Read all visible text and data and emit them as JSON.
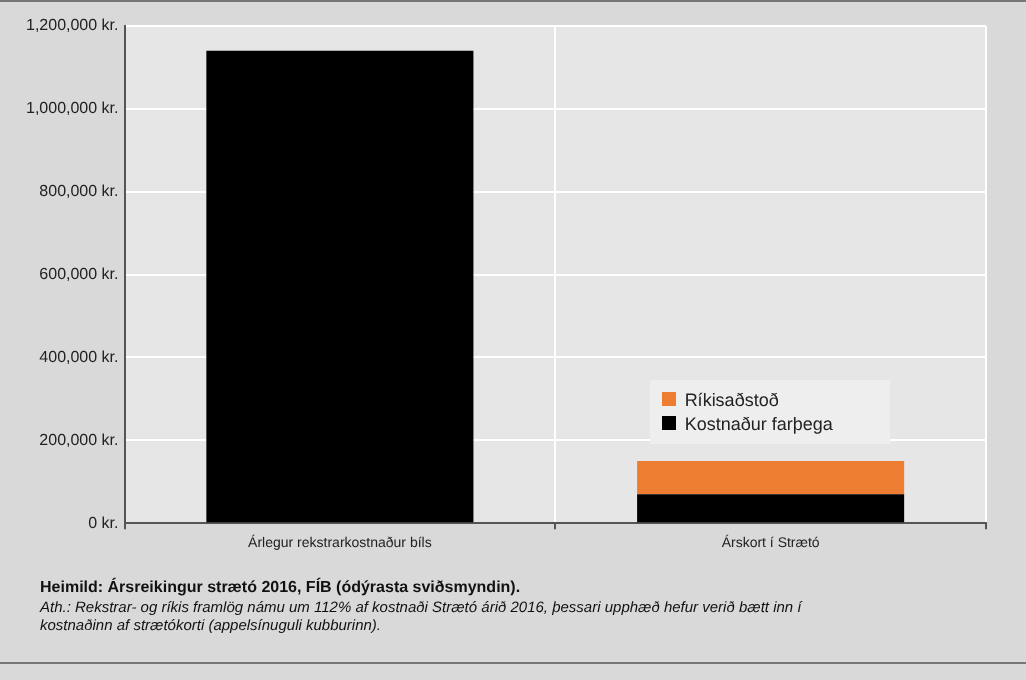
{
  "chart_data": {
    "type": "bar",
    "stacked": true,
    "categories": [
      "Árlegur rekstrarkostnaður bíls",
      "Árskort í Strætó"
    ],
    "series": [
      {
        "name": "Kostnaður farþega",
        "color": "#000000",
        "values": [
          1140000,
          70000
        ]
      },
      {
        "name": "Ríkisaðstoð",
        "color": "#ed7d31",
        "values": [
          null,
          80000
        ]
      }
    ],
    "ylim": [
      0,
      1200000
    ],
    "yticks": [
      {
        "value": 0,
        "label": "0 kr."
      },
      {
        "value": 200000,
        "label": "200,000 kr."
      },
      {
        "value": 400000,
        "label": "400,000 kr."
      },
      {
        "value": 600000,
        "label": "600,000 kr."
      },
      {
        "value": 800000,
        "label": "800,000 kr."
      },
      {
        "value": 1000000,
        "label": "1,000,000 kr."
      },
      {
        "value": 1200000,
        "label": "1,200,000 kr."
      }
    ],
    "grid": true,
    "legend": "bottom right",
    "annotations": [
      "Heimild: Ársreikingur strætó 2016, FÍB (ódýrasta sviðsmyndin).",
      "Ath.: Rekstrar- og ríkis framlög námu um 112% af kostnaði Strætó árið 2016, þessari upphæð hefur verið bætt inn í kostnaðinn af strætókorti (appelsínuguli kubburinn)."
    ]
  }
}
